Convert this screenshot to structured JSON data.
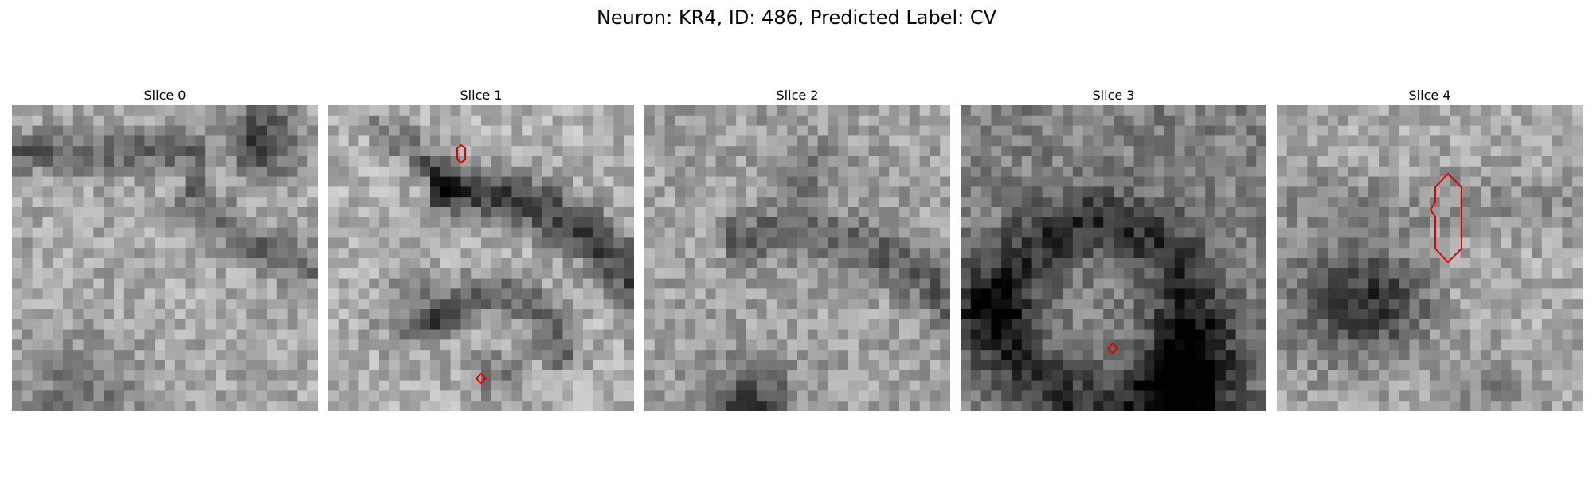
{
  "figure": {
    "title": "Neuron: KR4, ID: 486, Predicted Label: CV"
  },
  "panels": [
    {
      "label": "Slice 0",
      "seed": 11,
      "base": 168,
      "contour": "none"
    },
    {
      "label": "Slice 1",
      "seed": 23,
      "base": 176,
      "contour": "two-small"
    },
    {
      "label": "Slice 2",
      "seed": 37,
      "base": 160,
      "contour": "none"
    },
    {
      "label": "Slice 3",
      "seed": 41,
      "base": 128,
      "contour": "one-small"
    },
    {
      "label": "Slice 4",
      "seed": 53,
      "base": 170,
      "contour": "one-large"
    }
  ],
  "colors": {
    "contour": "#e00000",
    "background": "#ffffff"
  }
}
